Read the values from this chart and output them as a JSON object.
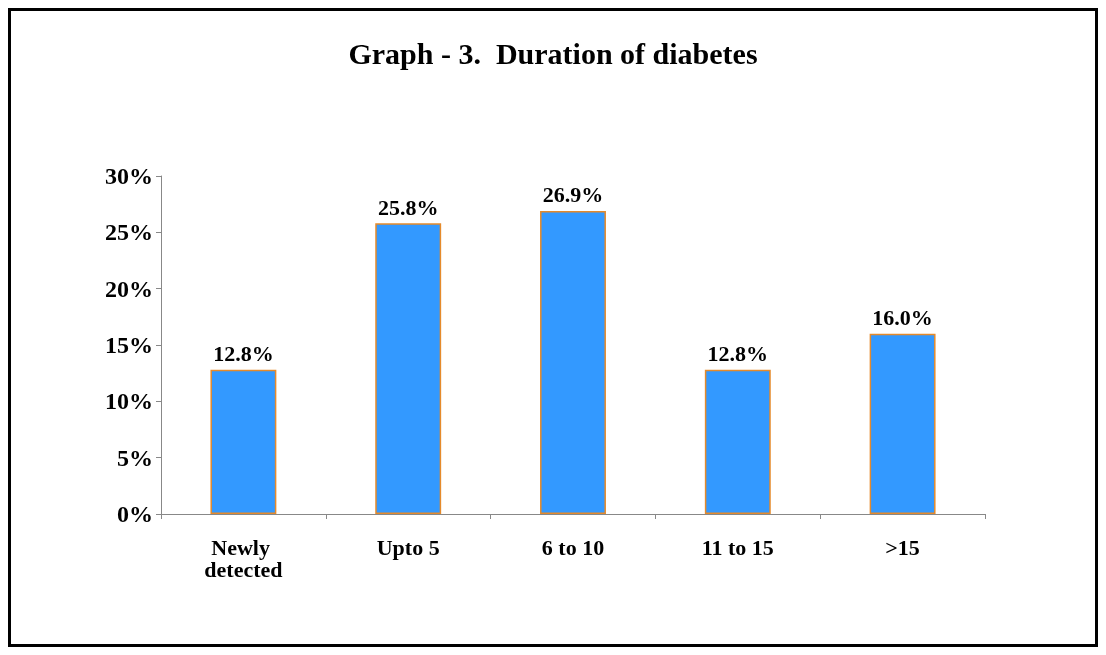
{
  "chart_data": {
    "type": "bar",
    "title": "Graph - 3.  Duration of diabetes",
    "categories": [
      "Newly detected",
      "Upto 5",
      "6 to 10",
      "11 to 15",
      ">15"
    ],
    "values": [
      12.8,
      25.8,
      26.9,
      12.8,
      16.0
    ],
    "value_labels": [
      "12.8%",
      "25.8%",
      "26.9%",
      "12.8%",
      "16.0%"
    ],
    "color": "#3399ff",
    "ylim": [
      0,
      30
    ],
    "yticks": [
      {
        "value": 0,
        "label": "0%"
      },
      {
        "value": 5,
        "label": "5%"
      },
      {
        "value": 10,
        "label": "10%"
      },
      {
        "value": 15,
        "label": "15%"
      },
      {
        "value": 20,
        "label": "20%"
      },
      {
        "value": 25,
        "label": "25%"
      },
      {
        "value": 30,
        "label": "30%"
      }
    ],
    "grid": false
  }
}
